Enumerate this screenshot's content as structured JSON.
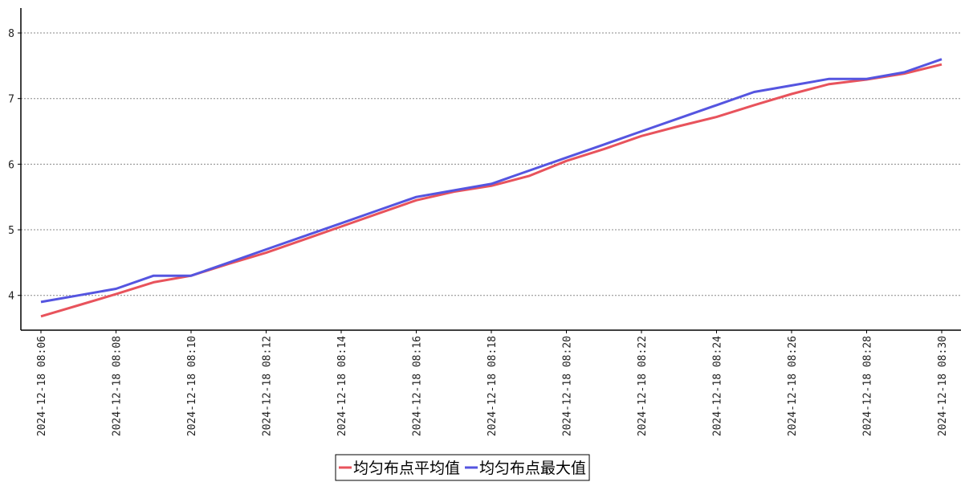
{
  "chart_data": {
    "type": "line",
    "categories": [
      "2024-12-18 08:06",
      null,
      "2024-12-18 08:08",
      null,
      "2024-12-18 08:10",
      null,
      "2024-12-18 08:12",
      null,
      "2024-12-18 08:14",
      null,
      "2024-12-18 08:16",
      null,
      "2024-12-18 08:18",
      null,
      "2024-12-18 08:20",
      null,
      "2024-12-18 08:22",
      null,
      "2024-12-18 08:24",
      null,
      "2024-12-18 08:26",
      null,
      "2024-12-18 08:28",
      null,
      "2024-12-18 08:30"
    ],
    "series": [
      {
        "name": "均匀布点平均值",
        "color": "#e8535c",
        "values": [
          3.68,
          3.85,
          4.02,
          4.2,
          4.3,
          4.48,
          4.65,
          4.85,
          5.05,
          5.25,
          5.45,
          5.58,
          5.67,
          5.82,
          6.05,
          6.23,
          6.43,
          6.58,
          6.72,
          6.9,
          7.07,
          7.22,
          7.29,
          7.38,
          7.52
        ]
      },
      {
        "name": "均匀布点最大值",
        "color": "#5555e0",
        "values": [
          3.9,
          4.0,
          4.1,
          4.3,
          4.3,
          4.5,
          4.7,
          4.9,
          5.1,
          5.3,
          5.5,
          5.6,
          5.7,
          5.9,
          6.1,
          6.3,
          6.5,
          6.7,
          6.9,
          7.1,
          7.2,
          7.3,
          7.3,
          7.4,
          7.6
        ]
      }
    ],
    "ylim": [
      3.47,
      8.38
    ],
    "yticks": [
      4,
      5,
      6,
      7,
      8
    ],
    "grid": true,
    "legend": "bottom"
  }
}
